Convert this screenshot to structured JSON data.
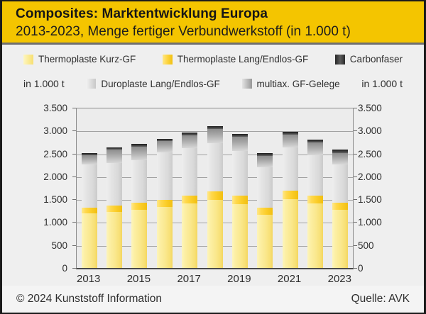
{
  "header": {
    "title": "Composites: Marktentwicklung Europa",
    "subtitle": "2013-2023, Menge fertiger Verbundwerkstoff (in 1.000 t)"
  },
  "legend": {
    "unit_left": "in 1.000 t",
    "unit_right": "in 1.000 t",
    "row1": [
      {
        "label": "Thermoplaste Kurz-GF",
        "swatch": "kurz"
      },
      {
        "label": "Thermoplaste Lang/Endlos-GF",
        "swatch": "lang"
      },
      {
        "label": "Carbonfaser",
        "swatch": "carbon"
      }
    ],
    "row2": [
      {
        "label": "Duroplaste Lang/Endlos-GF",
        "swatch": "duro"
      },
      {
        "label": "multiax. GF-Gelege",
        "swatch": "multiax"
      }
    ]
  },
  "chart_data": {
    "type": "bar",
    "stacked": true,
    "title": "Composites: Marktentwicklung Europa",
    "subtitle": "2013-2023, Menge fertiger Verbundwerkstoff (in 1.000 t)",
    "unit": "1.000 t",
    "categories": [
      2013,
      2014,
      2015,
      2016,
      2017,
      2018,
      2019,
      2020,
      2021,
      2022,
      2023
    ],
    "x_tick_labels": [
      "2013",
      "2015",
      "2017",
      "2019",
      "2021",
      "2023"
    ],
    "x_tick_slots": [
      0,
      2,
      4,
      6,
      8,
      10
    ],
    "series": [
      {
        "name": "Thermoplaste Kurz-GF",
        "color": "#fae88e",
        "values": [
          1190,
          1225,
          1275,
          1325,
          1410,
          1490,
          1395,
          1165,
          1510,
          1410,
          1275
        ]
      },
      {
        "name": "Thermoplaste Lang/Endlos-GF",
        "color": "#fbcd28",
        "values": [
          130,
          140,
          155,
          165,
          175,
          185,
          180,
          145,
          175,
          175,
          145
        ]
      },
      {
        "name": "Duroplaste Lang/Endlos-GF",
        "color": "#dadada",
        "values": [
          945,
          930,
          925,
          1035,
          1030,
          1055,
          985,
          895,
          950,
          870,
          845
        ]
      },
      {
        "name": "multiax. GF-Gelege",
        "color": "#a8a8a8",
        "values": [
          195,
          285,
          295,
          240,
          280,
          300,
          300,
          235,
          270,
          280,
          250
        ]
      },
      {
        "name": "Carbonfaser",
        "color": "#3d3d3d",
        "values": [
          50,
          55,
          55,
          55,
          65,
          70,
          60,
          65,
          70,
          70,
          65
        ]
      }
    ],
    "totals": [
      2510,
      2635,
      2705,
      2820,
      2960,
      3100,
      2920,
      2505,
      2975,
      2805,
      2580
    ],
    "ylim": [
      0,
      3500
    ],
    "y_tick_step": 500,
    "y_tick_labels": [
      "0",
      "500",
      "1.000",
      "1.500",
      "2.000",
      "2.500",
      "3.000",
      "3.500"
    ],
    "grid": true,
    "legend_position": "top"
  },
  "footer": {
    "copyright": "© 2024 Kunststoff Information",
    "source": "Quelle: AVK"
  },
  "colors": {
    "header_bg": "#f4c500",
    "page_bg": "#efefef",
    "plot_bg": "#ececec",
    "gridline": "#a2a2a2",
    "axis": "#4a4a4a",
    "text": "#2e2e2e"
  }
}
